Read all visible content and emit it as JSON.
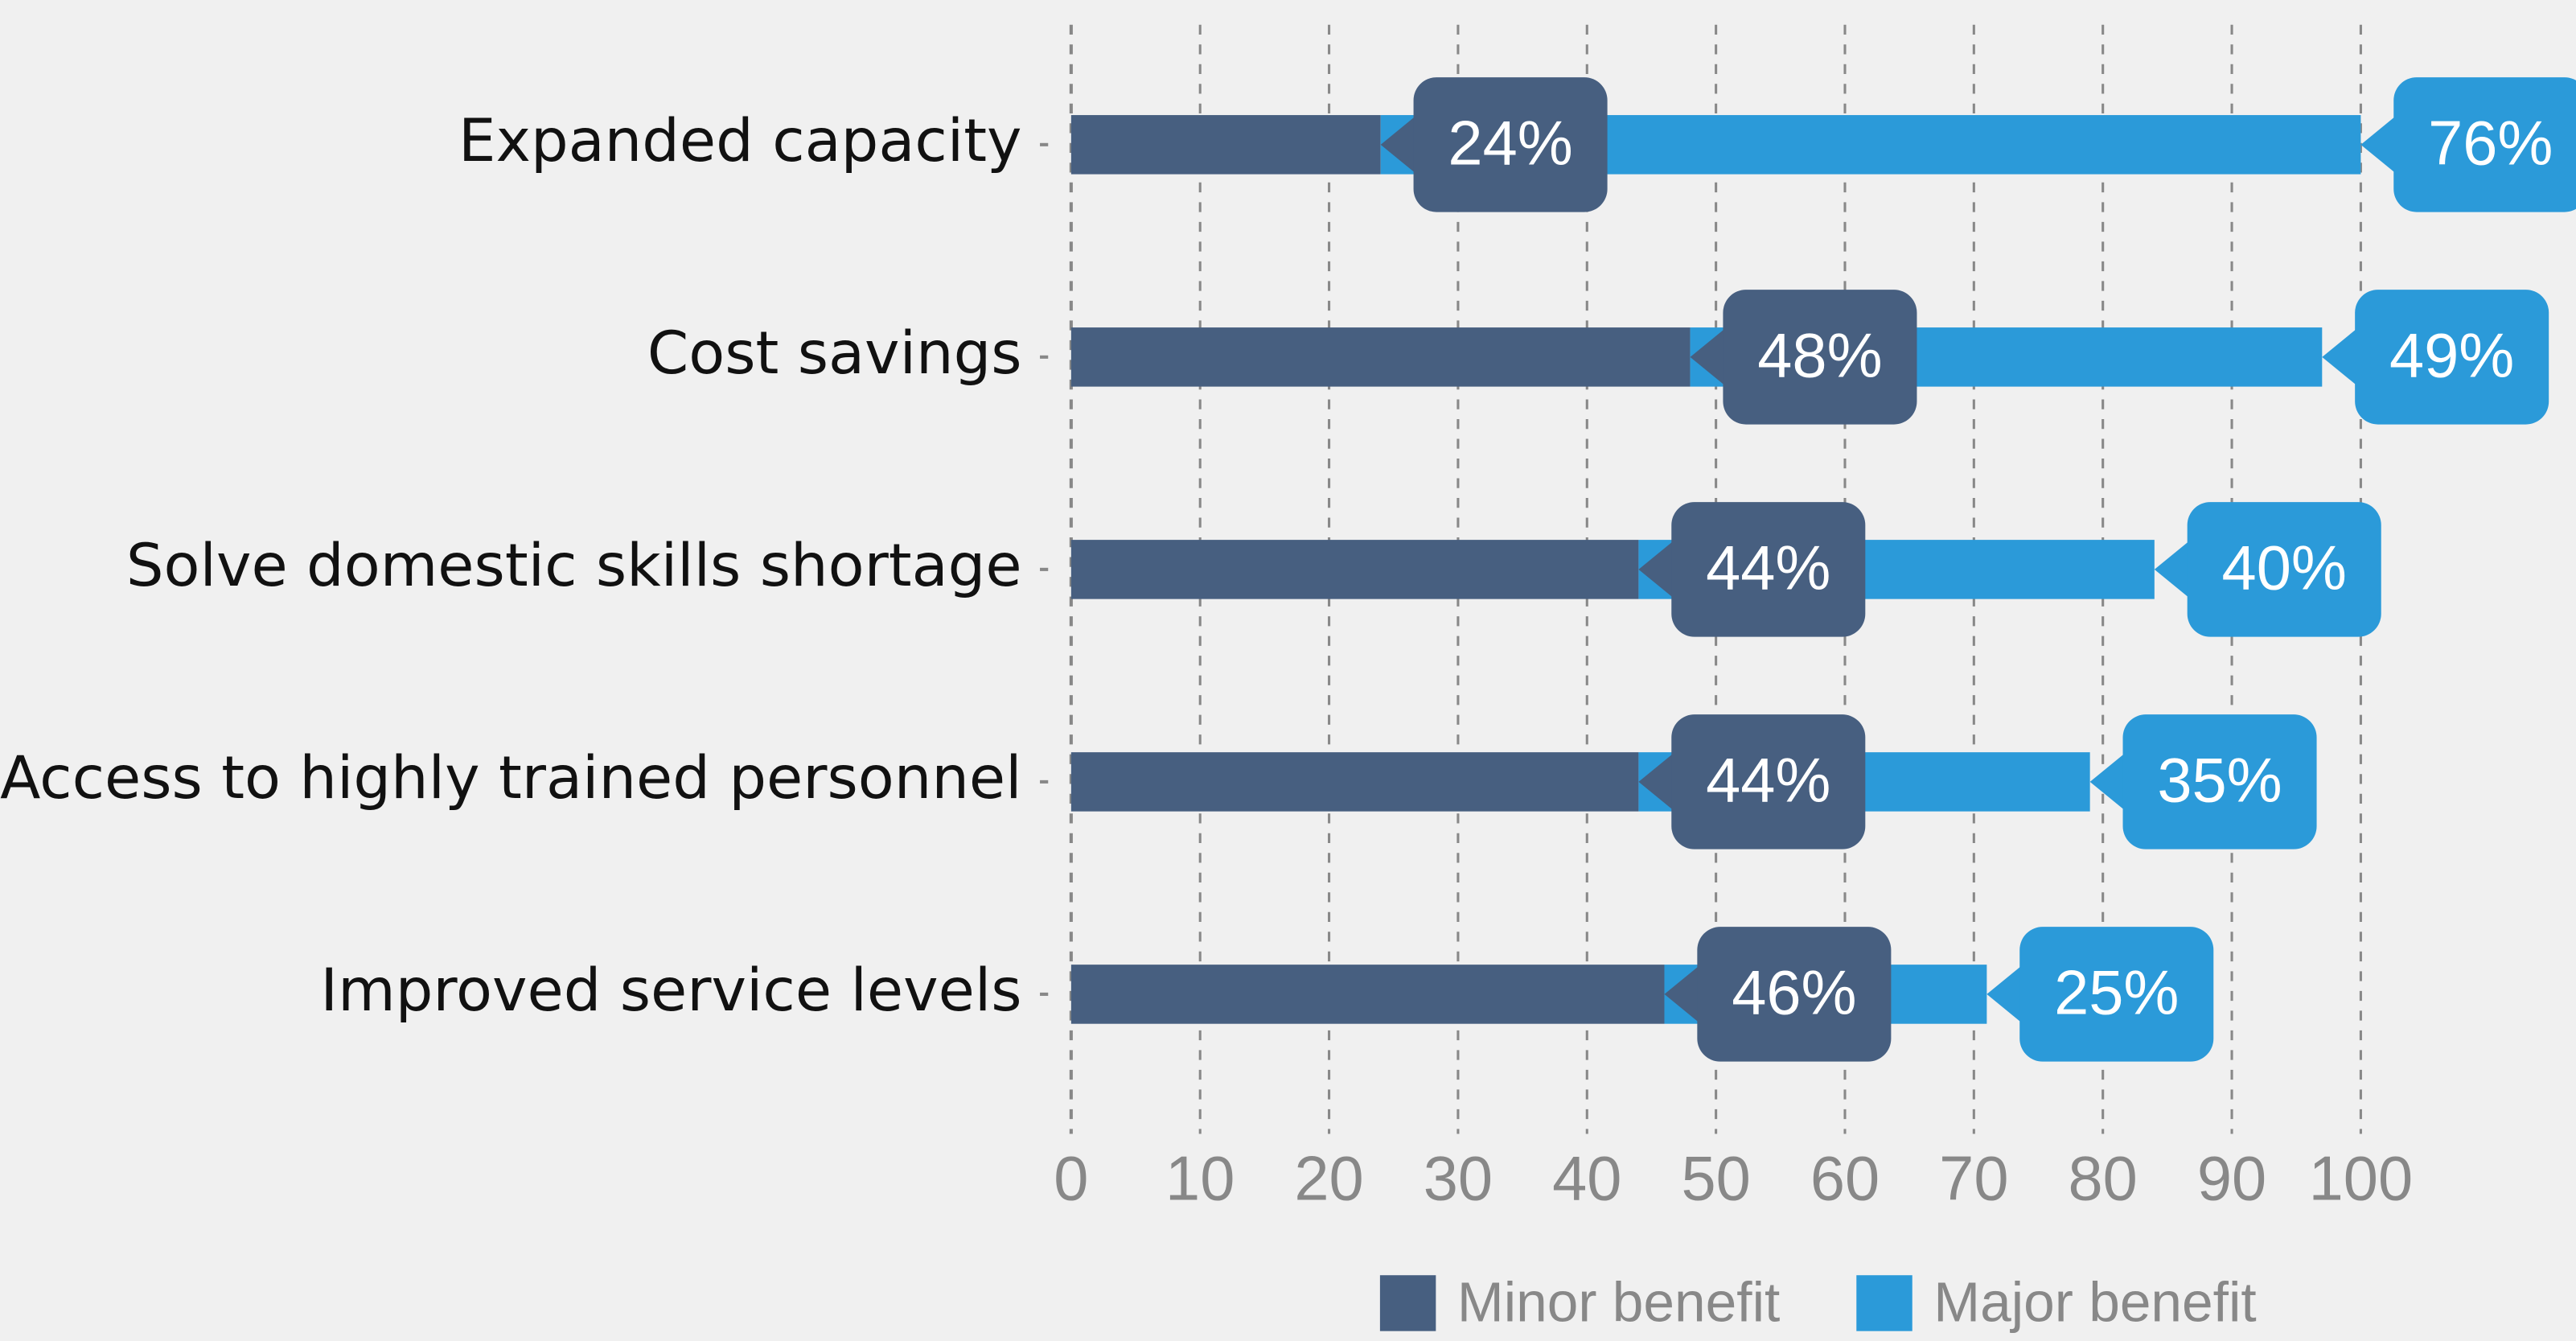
{
  "chart_data": {
    "type": "stacked-barh",
    "categories": [
      "Expanded capacity",
      "Cost savings",
      "Solve domestic skills shortage",
      "Access to highly trained personnel",
      "Improved service levels"
    ],
    "series": [
      {
        "name": "Minor benefit",
        "color": "#475f80",
        "values": [
          24,
          48,
          44,
          44,
          46
        ],
        "value_labels": [
          "24%",
          "48%",
          "44%",
          "44%",
          "46%"
        ]
      },
      {
        "name": "Major benefit",
        "color": "#2b9ad9",
        "values": [
          76,
          49,
          40,
          35,
          25
        ],
        "value_labels": [
          "76%",
          "49%",
          "40%",
          "35%",
          "25%"
        ]
      }
    ],
    "xlim": [
      0,
      100
    ],
    "xticks": [
      0,
      10,
      20,
      30,
      40,
      50,
      60,
      70,
      80,
      90,
      100
    ],
    "grid": true,
    "legend": "bottom"
  }
}
